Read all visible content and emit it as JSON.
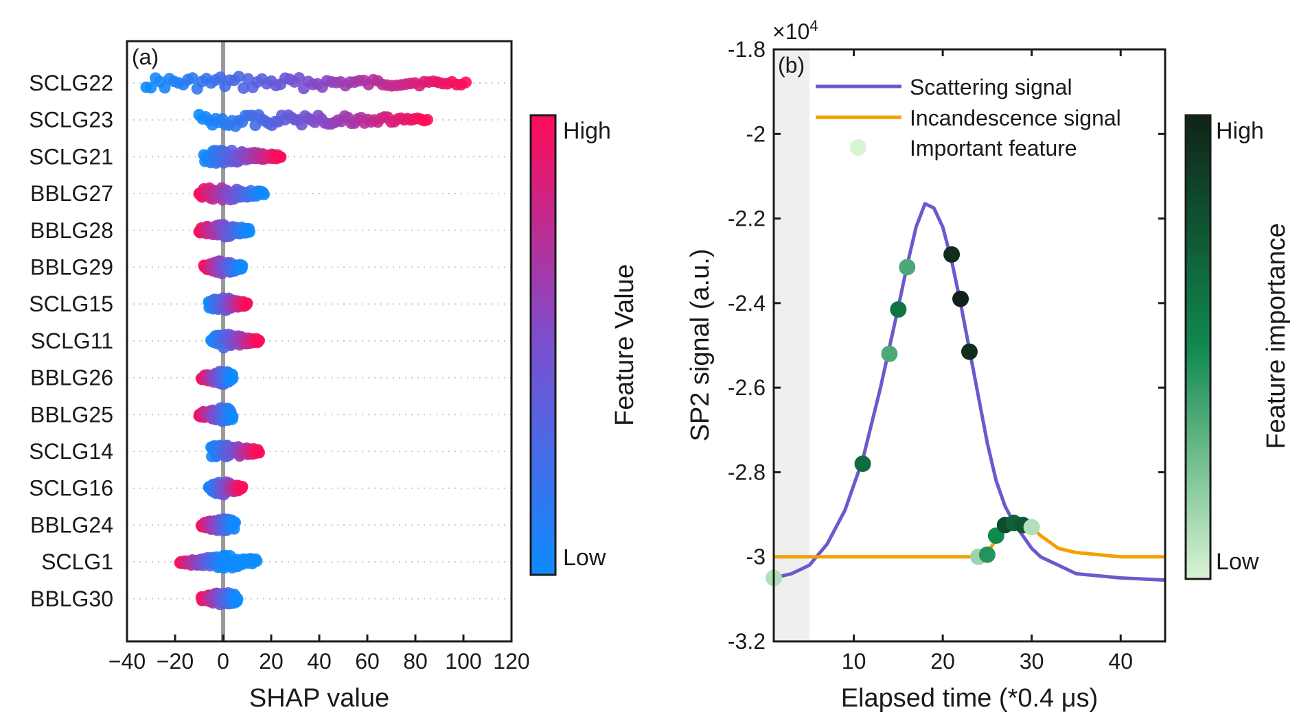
{
  "chart_data": [
    {
      "type": "scatter",
      "subtype": "shap-beeswarm",
      "panel_label": "(a)",
      "xlabel": "SHAP value",
      "ylabel": "",
      "xlim": [
        -40,
        120
      ],
      "x_ticks": [
        "−40",
        "−20",
        "0",
        "20",
        "40",
        "60",
        "80",
        "100",
        "120"
      ],
      "x_tick_values": [
        -40,
        -20,
        0,
        20,
        40,
        60,
        80,
        100,
        120
      ],
      "features": [
        "SCLG22",
        "SCLG23",
        "SCLG21",
        "BBLG27",
        "BBLG28",
        "BBLG29",
        "SCLG15",
        "SCLG11",
        "BBLG26",
        "BBLG25",
        "SCLG14",
        "SCLG16",
        "BBLG24",
        "SCLG1",
        "BBLG30"
      ],
      "shap_ranges": [
        {
          "feature": "SCLG22",
          "min": -32,
          "max": 101,
          "low_end": -32,
          "high_end": 101
        },
        {
          "feature": "SCLG23",
          "min": -10,
          "max": 85,
          "low_end": -10,
          "high_end": 85
        },
        {
          "feature": "SCLG21",
          "min": -8,
          "max": 24,
          "low_end": -8,
          "high_end": 24
        },
        {
          "feature": "BBLG27",
          "min": -10,
          "max": 17,
          "low_end": 17,
          "high_end": -10
        },
        {
          "feature": "BBLG28",
          "min": -10,
          "max": 11,
          "low_end": 11,
          "high_end": -10
        },
        {
          "feature": "BBLG29",
          "min": -8,
          "max": 8,
          "low_end": 8,
          "high_end": -8
        },
        {
          "feature": "SCLG15",
          "min": -6,
          "max": 10,
          "low_end": -6,
          "high_end": 10
        },
        {
          "feature": "SCLG11",
          "min": -5,
          "max": 15,
          "low_end": -5,
          "high_end": 15
        },
        {
          "feature": "BBLG26",
          "min": -9,
          "max": 4,
          "low_end": 4,
          "high_end": -9
        },
        {
          "feature": "BBLG25",
          "min": -10,
          "max": 4,
          "low_end": 4,
          "high_end": -10
        },
        {
          "feature": "SCLG14",
          "min": -5,
          "max": 15,
          "low_end": -5,
          "high_end": 15
        },
        {
          "feature": "SCLG16",
          "min": -6,
          "max": 8,
          "low_end": -6,
          "high_end": 8
        },
        {
          "feature": "BBLG24",
          "min": -9,
          "max": 5,
          "low_end": 5,
          "high_end": -9
        },
        {
          "feature": "SCLG1",
          "min": -18,
          "max": 14,
          "low_end": 0,
          "high_end": -18
        },
        {
          "feature": "BBLG30",
          "min": -9,
          "max": 6,
          "low_end": 6,
          "high_end": -9
        }
      ],
      "colorbar": {
        "label": "Feature Value",
        "high_label": "High",
        "low_label": "Low",
        "high_color": "#ff0b57",
        "mid_color": "#7a4fd0",
        "low_color": "#0d8bff"
      },
      "zero_line_color": "#999999"
    },
    {
      "type": "line",
      "panel_label": "(b)",
      "xlabel": "Elapsed time (*0.4 μs)",
      "ylabel": "SP2 signal (a.u.)",
      "exponent_label": "×10",
      "exponent_power": "4",
      "xlim": [
        1,
        45
      ],
      "ylim": [
        -3.2,
        -1.8
      ],
      "x_ticks": [
        "10",
        "20",
        "30",
        "40"
      ],
      "x_tick_values": [
        10,
        20,
        30,
        40
      ],
      "y_ticks": [
        "-1.8",
        "-2",
        "-2.2",
        "-2.4",
        "-2.6",
        "-2.8",
        "-3",
        "-3.2"
      ],
      "y_tick_values": [
        -1.8,
        -2.0,
        -2.2,
        -2.4,
        -2.6,
        -2.8,
        -3.0,
        -3.2
      ],
      "shaded_region_x": [
        1,
        5
      ],
      "legend_position": "top",
      "series": [
        {
          "name": "Scattering signal",
          "color": "#6a5acd",
          "x": [
            1,
            3,
            5,
            7,
            9,
            11,
            13,
            15,
            16,
            17,
            18,
            19,
            20,
            21,
            22,
            23,
            24,
            25,
            26,
            27,
            28,
            29,
            30,
            31,
            33,
            35,
            40,
            45
          ],
          "y": [
            -3.05,
            -3.04,
            -3.02,
            -2.97,
            -2.89,
            -2.77,
            -2.6,
            -2.41,
            -2.31,
            -2.22,
            -2.165,
            -2.175,
            -2.22,
            -2.3,
            -2.4,
            -2.51,
            -2.62,
            -2.73,
            -2.82,
            -2.88,
            -2.92,
            -2.95,
            -2.98,
            -3.0,
            -3.02,
            -3.04,
            -3.05,
            -3.055
          ]
        },
        {
          "name": "Incandescence signal",
          "color": "#f5a000",
          "x": [
            1,
            10,
            20,
            24,
            25,
            26,
            27,
            28,
            29,
            30,
            31,
            33,
            35,
            40,
            45
          ],
          "y": [
            -3.0,
            -3.0,
            -3.0,
            -3.0,
            -2.99,
            -2.96,
            -2.93,
            -2.92,
            -2.925,
            -2.93,
            -2.95,
            -2.98,
            -2.99,
            -3.0,
            -3.0
          ]
        }
      ],
      "important_features": {
        "name": "Important feature",
        "x": [
          1,
          11,
          14,
          15,
          16,
          21,
          22,
          23,
          24,
          25,
          26,
          27,
          28,
          29,
          30
        ],
        "y": [
          -3.05,
          -2.78,
          -2.52,
          -2.415,
          -2.315,
          -2.285,
          -2.39,
          -2.515,
          -3.0,
          -2.995,
          -2.95,
          -2.925,
          -2.92,
          -2.925,
          -2.93
        ],
        "importance": [
          0.1,
          0.65,
          0.35,
          0.6,
          0.35,
          0.95,
          1.0,
          0.95,
          0.15,
          0.45,
          0.5,
          0.8,
          0.7,
          0.75,
          0.1
        ]
      },
      "colorbar": {
        "label": "Feature importance",
        "high_label": "High",
        "low_label": "Low",
        "high_color": "#0f2418",
        "mid_color": "#10894f",
        "low_color": "#d9f4d3"
      }
    }
  ]
}
